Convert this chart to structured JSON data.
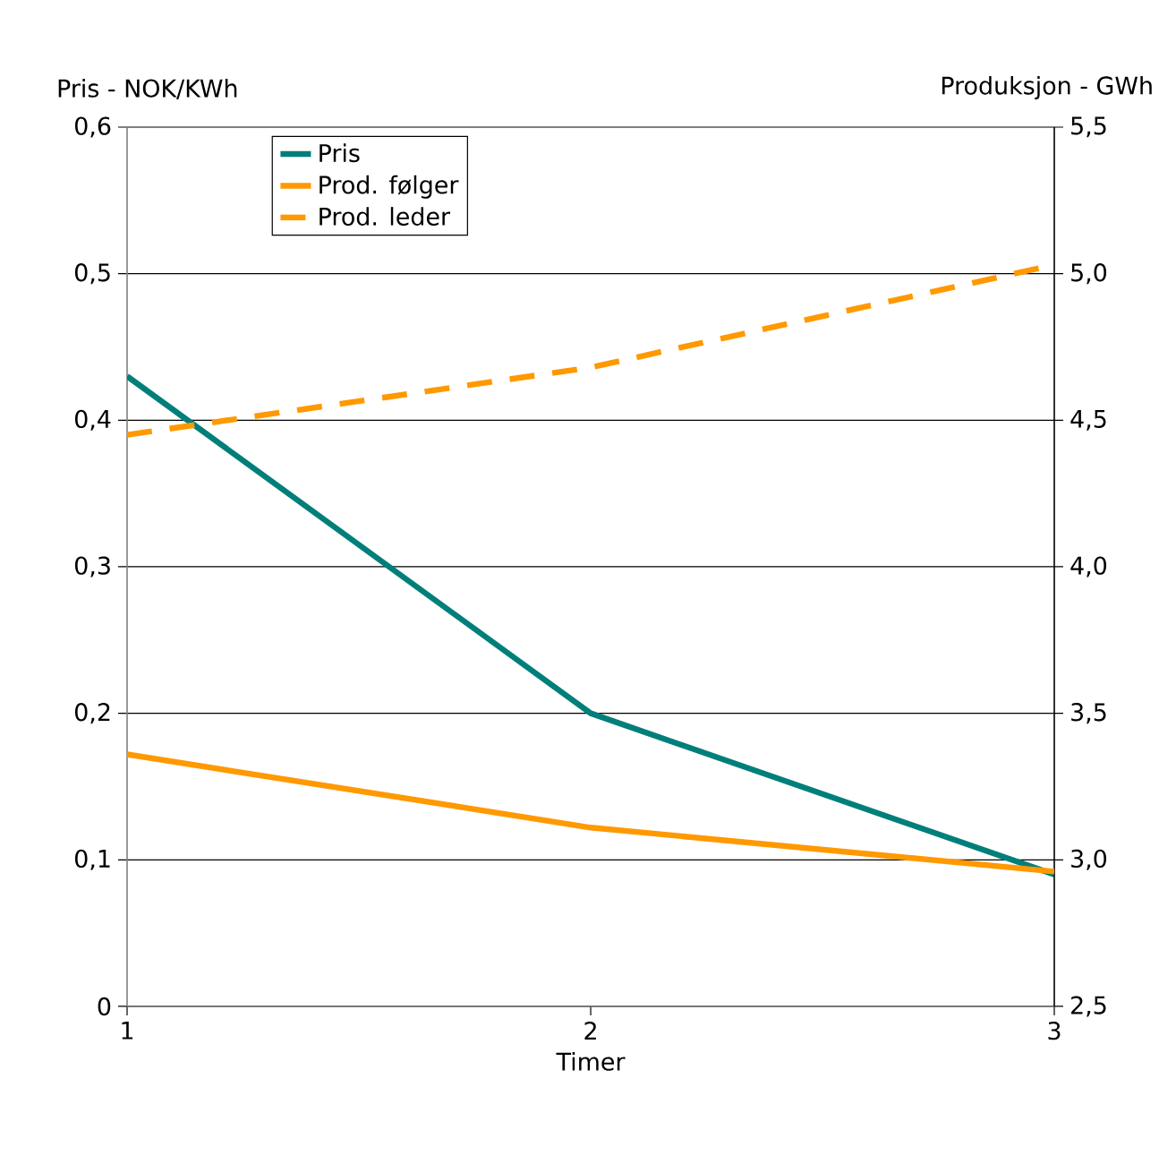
{
  "chart_data": {
    "type": "line",
    "xlabel": "Timer",
    "ylabel": "Pris - NOK/KWh",
    "y2label": "Produksjon - GWh",
    "x": [
      1,
      2,
      3
    ],
    "xlim": [
      1,
      3
    ],
    "xticks": [
      1,
      2,
      3
    ],
    "ylim": [
      0,
      0.6
    ],
    "yticks": [
      0,
      {
        "value": 0.1,
        "label": "0,1"
      },
      {
        "value": 0.2,
        "label": "0,2"
      },
      {
        "value": 0.3,
        "label": "0,3"
      },
      {
        "value": 0.4,
        "label": "0,4"
      },
      {
        "value": 0.5,
        "label": "0,5"
      },
      {
        "value": 0.6,
        "label": "0,6"
      }
    ],
    "y2lim": [
      2.5,
      5.5
    ],
    "y2ticks": [
      {
        "value": 2.5,
        "label": "2,5"
      },
      {
        "value": 3.0,
        "label": "3,0"
      },
      {
        "value": 3.5,
        "label": "3,5"
      },
      {
        "value": 4.0,
        "label": "4,0"
      },
      {
        "value": 4.5,
        "label": "4,5"
      },
      {
        "value": 5.0,
        "label": "5,0"
      },
      {
        "value": 5.5,
        "label": "5,5"
      }
    ],
    "grid": "y",
    "legend": "top left",
    "series": [
      {
        "name": "Pris",
        "color": "#007f7a",
        "values": [
          0.43,
          0.2,
          0.09
        ]
      },
      {
        "name": "Prod. følger",
        "color": "#ff9900",
        "axis": "y2",
        "values": [
          3.36,
          3.11,
          2.96
        ]
      },
      {
        "name": "Prod. leder",
        "color": "#ff9900",
        "axis": "y2",
        "line_style": "dashed",
        "values": [
          4.45,
          4.68,
          5.03
        ]
      }
    ]
  }
}
